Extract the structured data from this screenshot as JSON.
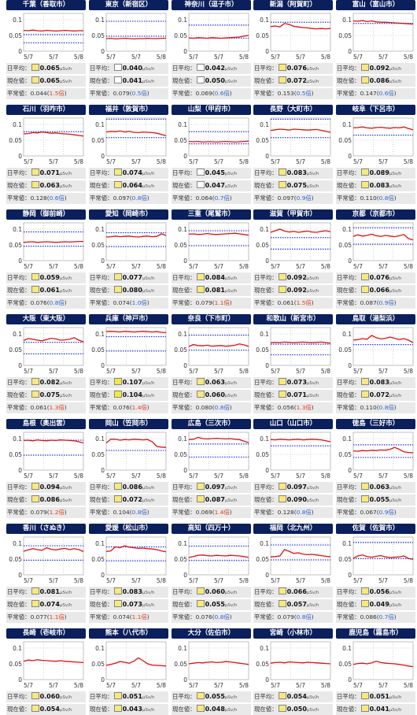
{
  "labels": {
    "daily_avg": "日平均：",
    "current": "現在値：",
    "normal": "平常値：",
    "unit": "μSv/h"
  },
  "colors": {
    "line": "#dd1111",
    "normal_band": "#2233dd",
    "grid": "#aaaaaa",
    "header_bg": "#0a1f5c",
    "ratio_low": "#3366cc",
    "ratio_high": "#e04020"
  },
  "stations": [
    {
      "pref": "千葉",
      "city": "（香取市）",
      "avg": "0.065",
      "cur": "0.065",
      "normal": "0.044",
      "ratio": "1.5倍",
      "sw": "#f7e97a"
    },
    {
      "pref": "東京",
      "city": "（新宿区）",
      "avg": "0.040",
      "cur": "0.041",
      "normal": "0.079",
      "ratio": "0.5倍",
      "sw": "#ffffff"
    },
    {
      "pref": "神奈川",
      "city": "（逗子市）",
      "avg": "0.042",
      "cur": "0.050",
      "normal": "0.069",
      "ratio": "0.6倍",
      "sw": "#ffffff"
    },
    {
      "pref": "新潟",
      "city": "（阿賀町）",
      "avg": "0.076",
      "cur": "0.072",
      "normal": "0.153",
      "ratio": "0.5倍",
      "sw": "#f7e97a"
    },
    {
      "pref": "富山",
      "city": "（富山市）",
      "avg": "0.092",
      "cur": "0.086",
      "normal": "0.147",
      "ratio": "0.6倍",
      "sw": "#f7e97a"
    },
    {
      "pref": "石川",
      "city": "（羽咋市）",
      "avg": "0.071",
      "cur": "0.063",
      "normal": "0.128",
      "ratio": "0.6倍",
      "sw": "#f7e97a"
    },
    {
      "pref": "福井",
      "city": "（敦賀市）",
      "avg": "0.074",
      "cur": "0.064",
      "normal": "0.097",
      "ratio": "0.8倍",
      "sw": "#f7e97a"
    },
    {
      "pref": "山梨",
      "city": "（甲府市）",
      "avg": "0.045",
      "cur": "0.047",
      "normal": "0.064",
      "ratio": "0.7倍",
      "sw": "#ffffff"
    },
    {
      "pref": "長野",
      "city": "（大町市）",
      "avg": "0.083",
      "cur": "0.075",
      "normal": "0.097",
      "ratio": "0.9倍",
      "sw": "#f7e97a"
    },
    {
      "pref": "岐阜",
      "city": "（下呂市）",
      "avg": "0.089",
      "cur": "0.083",
      "normal": "0.110",
      "ratio": "0.8倍",
      "sw": "#f7e97a"
    },
    {
      "pref": "静岡",
      "city": "（御前崎）",
      "avg": "0.059",
      "cur": "0.061",
      "normal": "0.076",
      "ratio": "0.8倍",
      "sw": "#f7e97a"
    },
    {
      "pref": "愛知",
      "city": "（岡崎市）",
      "avg": "0.077",
      "cur": "0.080",
      "normal": "0.074",
      "ratio": "1.0倍",
      "sw": "#f7e97a"
    },
    {
      "pref": "三重",
      "city": "（尾鷲市）",
      "avg": "0.084",
      "cur": "0.081",
      "normal": "0.079",
      "ratio": "1.1倍",
      "sw": "#f7e97a"
    },
    {
      "pref": "滋賀",
      "city": "（甲賀市）",
      "avg": "0.092",
      "cur": "0.092",
      "normal": "0.061",
      "ratio": "1.5倍",
      "sw": "#f7e97a"
    },
    {
      "pref": "京都",
      "city": "（京都市）",
      "avg": "0.076",
      "cur": "0.066",
      "normal": "0.087",
      "ratio": "0.9倍",
      "sw": "#f7e97a"
    },
    {
      "pref": "大阪",
      "city": "（東大阪）",
      "avg": "0.082",
      "cur": "0.075",
      "normal": "0.061",
      "ratio": "1.3倍",
      "sw": "#f7e97a"
    },
    {
      "pref": "兵庫",
      "city": "（神戸市）",
      "avg": "0.107",
      "cur": "0.104",
      "normal": "0.076",
      "ratio": "1.4倍",
      "sw": "#f0ea3a"
    },
    {
      "pref": "奈良",
      "city": "（下市町）",
      "avg": "0.063",
      "cur": "0.060",
      "normal": "0.080",
      "ratio": "0.8倍",
      "sw": "#f7e97a"
    },
    {
      "pref": "和歌山",
      "city": "（新宮市）",
      "avg": "0.073",
      "cur": "0.071",
      "normal": "0.056",
      "ratio": "1.3倍",
      "sw": "#f7e97a"
    },
    {
      "pref": "鳥取",
      "city": "（湯梨浜）",
      "avg": "0.083",
      "cur": "0.072",
      "normal": "0.110",
      "ratio": "0.8倍",
      "sw": "#f7e97a"
    },
    {
      "pref": "島根",
      "city": "（奥出雲）",
      "avg": "0.094",
      "cur": "0.086",
      "normal": "0.079",
      "ratio": "1.2倍",
      "sw": "#f7e97a"
    },
    {
      "pref": "岡山",
      "city": "（笠岡市）",
      "avg": "0.086",
      "cur": "0.072",
      "normal": "0.104",
      "ratio": "0.8倍",
      "sw": "#f7e97a"
    },
    {
      "pref": "広島",
      "city": "（三次市）",
      "avg": "0.097",
      "cur": "0.087",
      "normal": "0.069",
      "ratio": "1.4倍",
      "sw": "#f7e97a"
    },
    {
      "pref": "山口",
      "city": "（山口市）",
      "avg": "0.097",
      "cur": "0.090",
      "normal": "0.128",
      "ratio": "0.8倍",
      "sw": "#f7e97a"
    },
    {
      "pref": "徳島",
      "city": "（三好市）",
      "avg": "0.063",
      "cur": "0.055",
      "normal": "0.067",
      "ratio": "0.9倍",
      "sw": "#f7e97a"
    },
    {
      "pref": "香川",
      "city": "（さぬき）",
      "avg": "0.081",
      "cur": "0.074",
      "normal": "0.077",
      "ratio": "1.1倍",
      "sw": "#f7e97a"
    },
    {
      "pref": "愛媛",
      "city": "（松山市）",
      "avg": "0.083",
      "cur": "0.073",
      "normal": "0.074",
      "ratio": "1.1倍",
      "sw": "#f7e97a"
    },
    {
      "pref": "高知",
      "city": "（四万十）",
      "avg": "0.060",
      "cur": "0.055",
      "normal": "0.076",
      "ratio": "0.8倍",
      "sw": "#f7e97a"
    },
    {
      "pref": "福岡",
      "city": "（北九州）",
      "avg": "0.066",
      "cur": "0.057",
      "normal": "0.079",
      "ratio": "0.8倍",
      "sw": "#f7e97a"
    },
    {
      "pref": "佐賀",
      "city": "（佐賀市）",
      "avg": "0.056",
      "cur": "0.049",
      "normal": "0.086",
      "ratio": "0.7倍",
      "sw": "#f7e97a"
    },
    {
      "pref": "長崎",
      "city": "（壱岐市）",
      "avg": "0.060",
      "cur": "0.054",
      "normal": "",
      "ratio": "",
      "sw": "#f7e97a"
    },
    {
      "pref": "熊本",
      "city": "（八代市）",
      "avg": "0.051",
      "cur": "0.043",
      "normal": "",
      "ratio": "",
      "sw": "#f7e97a"
    },
    {
      "pref": "大分",
      "city": "（佐伯市）",
      "avg": "0.055",
      "cur": "0.048",
      "normal": "",
      "ratio": "",
      "sw": "#f7e97a"
    },
    {
      "pref": "宮崎",
      "city": "（小林市）",
      "avg": "0.054",
      "cur": "0.050",
      "normal": "",
      "ratio": "",
      "sw": "#f7e97a"
    },
    {
      "pref": "鹿児島",
      "city": "（霧島市）",
      "avg": "0.051",
      "cur": "0.041",
      "normal": "",
      "ratio": "",
      "sw": "#f7e97a"
    }
  ],
  "chart_data": {
    "type": "line",
    "x_ticks": [
      "5/7",
      "5/7",
      "5/8"
    ],
    "y_ticks": [
      "0.1",
      "0.05",
      "0"
    ],
    "ylim": [
      0,
      0.12
    ],
    "grid": true,
    "series": [
      {
        "name": "千葉（香取市）",
        "values": [
          0.066,
          0.065,
          0.067,
          0.065,
          0.064,
          0.066,
          0.065,
          0.064,
          0.065,
          0.066,
          0.065,
          0.064,
          0.065,
          0.065
        ]
      },
      {
        "name": "東京（新宿区）",
        "values": [
          0.04,
          0.041,
          0.039,
          0.04,
          0.041,
          0.04,
          0.039,
          0.04,
          0.04,
          0.041,
          0.04,
          0.04,
          0.041,
          0.041
        ]
      },
      {
        "name": "神奈川（逗子市）",
        "values": [
          0.042,
          0.041,
          0.043,
          0.042,
          0.041,
          0.043,
          0.042,
          0.041,
          0.042,
          0.043,
          0.044,
          0.045,
          0.048,
          0.05
        ]
      },
      {
        "name": "新潟（阿賀町）",
        "values": [
          0.078,
          0.08,
          0.077,
          0.088,
          0.085,
          0.079,
          0.077,
          0.075,
          0.074,
          0.072,
          0.071,
          0.072,
          0.071,
          0.072
        ]
      },
      {
        "name": "富山（富山市）",
        "values": [
          0.096,
          0.095,
          0.097,
          0.094,
          0.096,
          0.093,
          0.092,
          0.092,
          0.091,
          0.09,
          0.089,
          0.088,
          0.087,
          0.086
        ]
      },
      {
        "name": "石川（羽咋市）",
        "values": [
          0.07,
          0.071,
          0.074,
          0.073,
          0.076,
          0.074,
          0.072,
          0.073,
          0.071,
          0.07,
          0.069,
          0.067,
          0.065,
          0.063
        ]
      },
      {
        "name": "福井（敦賀市）",
        "values": [
          0.076,
          0.078,
          0.077,
          0.079,
          0.076,
          0.078,
          0.075,
          0.074,
          0.076,
          0.075,
          0.074,
          0.072,
          0.068,
          0.064
        ]
      },
      {
        "name": "山梨（甲府市）",
        "values": [
          0.046,
          0.045,
          0.046,
          0.044,
          0.045,
          0.045,
          0.044,
          0.045,
          0.046,
          0.045,
          0.044,
          0.045,
          0.046,
          0.047
        ]
      },
      {
        "name": "長野（大町市）",
        "values": [
          0.081,
          0.083,
          0.085,
          0.084,
          0.082,
          0.085,
          0.084,
          0.083,
          0.082,
          0.083,
          0.084,
          0.081,
          0.078,
          0.075
        ]
      },
      {
        "name": "岐阜（下呂市）",
        "values": [
          0.089,
          0.09,
          0.092,
          0.089,
          0.088,
          0.09,
          0.091,
          0.089,
          0.088,
          0.09,
          0.089,
          0.092,
          0.087,
          0.083
        ]
      },
      {
        "name": "静岡（御前崎）",
        "values": [
          0.058,
          0.059,
          0.06,
          0.058,
          0.059,
          0.06,
          0.059,
          0.058,
          0.059,
          0.06,
          0.059,
          0.06,
          0.061,
          0.061
        ]
      },
      {
        "name": "愛知（岡崎市）",
        "values": [
          0.075,
          0.076,
          0.078,
          0.076,
          0.077,
          0.078,
          0.076,
          0.075,
          0.077,
          0.078,
          0.076,
          0.077,
          0.085,
          0.08
        ]
      },
      {
        "name": "三重（尾鷲市）",
        "values": [
          0.084,
          0.085,
          0.083,
          0.084,
          0.086,
          0.084,
          0.083,
          0.084,
          0.085,
          0.086,
          0.087,
          0.085,
          0.083,
          0.081
        ]
      },
      {
        "name": "滋賀（甲賀市）",
        "values": [
          0.09,
          0.095,
          0.1,
          0.094,
          0.091,
          0.093,
          0.09,
          0.092,
          0.094,
          0.091,
          0.09,
          0.093,
          0.095,
          0.092
        ]
      },
      {
        "name": "京都（京都市）",
        "values": [
          0.077,
          0.082,
          0.078,
          0.08,
          0.084,
          0.079,
          0.077,
          0.08,
          0.078,
          0.076,
          0.079,
          0.083,
          0.07,
          0.066
        ]
      },
      {
        "name": "大阪（東大阪）",
        "values": [
          0.079,
          0.085,
          0.083,
          0.08,
          0.078,
          0.082,
          0.086,
          0.084,
          0.08,
          0.081,
          0.083,
          0.088,
          0.08,
          0.075
        ]
      },
      {
        "name": "兵庫（神戸市）",
        "values": [
          0.107,
          0.108,
          0.107,
          0.106,
          0.108,
          0.107,
          0.106,
          0.107,
          0.108,
          0.107,
          0.106,
          0.107,
          0.105,
          0.104
        ]
      },
      {
        "name": "奈良（下市町）",
        "values": [
          0.06,
          0.066,
          0.063,
          0.062,
          0.064,
          0.061,
          0.062,
          0.063,
          0.061,
          0.062,
          0.064,
          0.068,
          0.065,
          0.06
        ]
      },
      {
        "name": "和歌山（新宮市）",
        "values": [
          0.072,
          0.073,
          0.072,
          0.074,
          0.073,
          0.072,
          0.073,
          0.074,
          0.073,
          0.072,
          0.073,
          0.074,
          0.072,
          0.071
        ]
      },
      {
        "name": "鳥取（湯梨浜）",
        "values": [
          0.08,
          0.082,
          0.085,
          0.083,
          0.095,
          0.088,
          0.084,
          0.086,
          0.09,
          0.086,
          0.082,
          0.085,
          0.08,
          0.072
        ]
      },
      {
        "name": "島根（奥出雲）",
        "values": [
          0.094,
          0.095,
          0.093,
          0.096,
          0.094,
          0.093,
          0.095,
          0.094,
          0.096,
          0.095,
          0.094,
          0.093,
          0.09,
          0.086
        ]
      },
      {
        "name": "岡山（笠岡市）",
        "values": [
          0.086,
          0.098,
          0.098,
          0.095,
          0.097,
          0.096,
          0.098,
          0.097,
          0.096,
          0.097,
          0.09,
          0.075,
          0.073,
          0.072
        ]
      },
      {
        "name": "広島（三次市）",
        "values": [
          0.097,
          0.098,
          0.104,
          0.1,
          0.099,
          0.1,
          0.101,
          0.1,
          0.099,
          0.1,
          0.098,
          0.097,
          0.092,
          0.087
        ]
      },
      {
        "name": "山口（山口市）",
        "values": [
          0.097,
          0.096,
          0.098,
          0.097,
          0.096,
          0.097,
          0.098,
          0.096,
          0.097,
          0.098,
          0.097,
          0.096,
          0.093,
          0.09
        ]
      },
      {
        "name": "徳島（三好市）",
        "values": [
          0.061,
          0.06,
          0.062,
          0.061,
          0.063,
          0.062,
          0.064,
          0.063,
          0.066,
          0.072,
          0.066,
          0.058,
          0.056,
          0.055
        ]
      },
      {
        "name": "香川（さぬき）",
        "values": [
          0.075,
          0.079,
          0.083,
          0.08,
          0.078,
          0.086,
          0.081,
          0.079,
          0.082,
          0.084,
          0.08,
          0.083,
          0.08,
          0.074
        ]
      },
      {
        "name": "愛媛（松山市）",
        "values": [
          0.074,
          0.076,
          0.089,
          0.086,
          0.092,
          0.088,
          0.086,
          0.084,
          0.085,
          0.083,
          0.082,
          0.08,
          0.076,
          0.073
        ]
      },
      {
        "name": "高知（四万十）",
        "values": [
          0.055,
          0.058,
          0.062,
          0.063,
          0.061,
          0.06,
          0.062,
          0.061,
          0.06,
          0.062,
          0.061,
          0.06,
          0.058,
          0.055
        ]
      },
      {
        "name": "福岡（北九州）",
        "values": [
          0.057,
          0.058,
          0.06,
          0.08,
          0.075,
          0.068,
          0.07,
          0.066,
          0.064,
          0.065,
          0.063,
          0.061,
          0.059,
          0.057
        ]
      },
      {
        "name": "佐賀（佐賀市）",
        "values": [
          0.053,
          0.06,
          0.063,
          0.058,
          0.056,
          0.059,
          0.061,
          0.057,
          0.055,
          0.056,
          0.057,
          0.06,
          0.052,
          0.049
        ]
      },
      {
        "name": "長崎（壱岐市）",
        "values": [
          0.058,
          0.062,
          0.06,
          0.063,
          0.061,
          0.06,
          0.059,
          0.058,
          0.06,
          0.058,
          0.057,
          0.056,
          0.055,
          0.054
        ]
      },
      {
        "name": "熊本（八代市）",
        "values": [
          0.045,
          0.048,
          0.052,
          0.057,
          0.055,
          0.052,
          0.058,
          0.069,
          0.06,
          0.05,
          0.046,
          0.045,
          0.044,
          0.043
        ]
      },
      {
        "name": "大分（佐伯市）",
        "values": [
          0.05,
          0.052,
          0.054,
          0.053,
          0.055,
          0.056,
          0.054,
          0.055,
          0.057,
          0.056,
          0.054,
          0.052,
          0.05,
          0.048
        ]
      },
      {
        "name": "宮崎（小林市）",
        "values": [
          0.052,
          0.054,
          0.055,
          0.053,
          0.056,
          0.055,
          0.054,
          0.053,
          0.055,
          0.054,
          0.053,
          0.052,
          0.051,
          0.05
        ]
      },
      {
        "name": "鹿児島（霧島市）",
        "values": [
          0.048,
          0.051,
          0.052,
          0.05,
          0.053,
          0.058,
          0.054,
          0.052,
          0.051,
          0.05,
          0.048,
          0.046,
          0.043,
          0.041
        ]
      }
    ]
  }
}
